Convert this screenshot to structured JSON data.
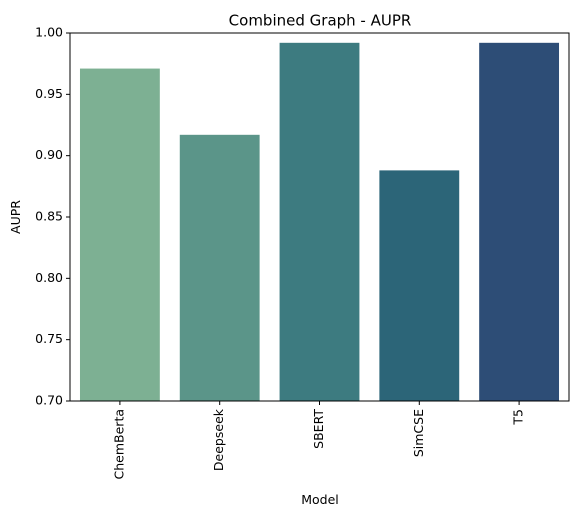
{
  "chart_data": {
    "type": "bar",
    "title": "Combined Graph - AUPR",
    "xlabel": "Model",
    "ylabel": "AUPR",
    "categories": [
      "ChemBerta",
      "Deepseek",
      "SBERT",
      "SimCSE",
      "T5"
    ],
    "values": [
      0.971,
      0.917,
      0.992,
      0.888,
      0.992
    ],
    "colors": [
      "#7db093",
      "#5b9589",
      "#3d7b80",
      "#2c6578",
      "#2d4d76"
    ],
    "ylim": [
      0.7,
      1.0
    ],
    "yticks": [
      "0.70",
      "0.75",
      "0.80",
      "0.85",
      "0.90",
      "0.95",
      "1.00"
    ],
    "grid": false,
    "legend": "none"
  }
}
